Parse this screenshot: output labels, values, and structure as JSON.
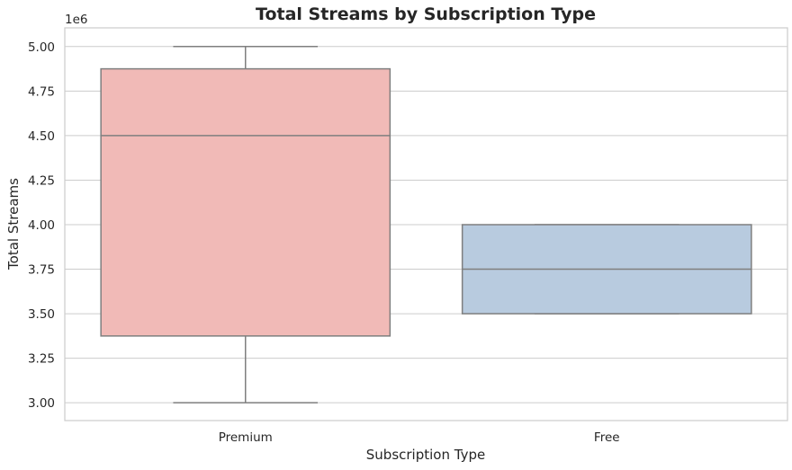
{
  "chart_data": {
    "type": "box",
    "title": "Total Streams by Subscription Type",
    "xlabel": "Subscription Type",
    "ylabel": "Total Streams",
    "offset_label": "1e6",
    "categories": [
      "Premium",
      "Free"
    ],
    "boxes": [
      {
        "category": "Premium",
        "min": 3.0,
        "q1": 3.375,
        "median": 4.5,
        "q3": 4.875,
        "max": 5.0,
        "color": "#f1bab7"
      },
      {
        "category": "Free",
        "min": 3.5,
        "q1": 3.5,
        "median": 3.75,
        "q3": 4.0,
        "max": 4.0,
        "color": "#b8cbdf"
      }
    ],
    "y_ticks": [
      "3.00",
      "3.25",
      "3.50",
      "3.75",
      "4.00",
      "4.25",
      "4.50",
      "4.75",
      "5.00"
    ],
    "ylim": [
      2.9,
      5.105
    ],
    "grid": true,
    "colors": {
      "grid": "#cccccc",
      "spine": "#cccccc",
      "line": "#7f7f7f",
      "text": "#262626"
    }
  }
}
